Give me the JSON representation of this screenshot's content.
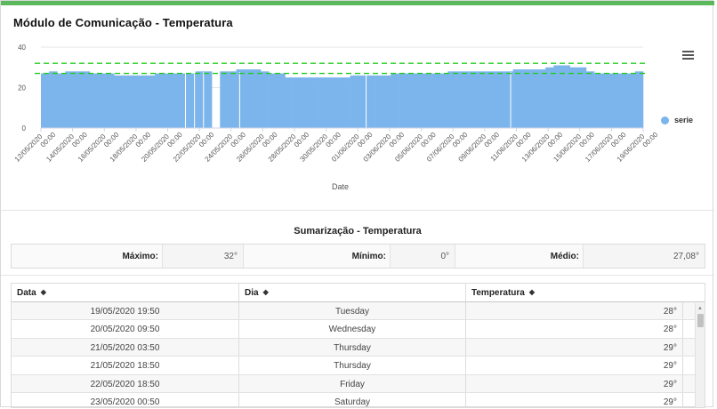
{
  "title": "Módulo de Comunicação - Temperatura",
  "menu_icon": "hamburger-menu-icon",
  "chart_data": {
    "type": "bar",
    "ylim": [
      0,
      40
    ],
    "y_ticks": [
      "0",
      "20",
      "40"
    ],
    "thresholds": [
      27,
      32
    ],
    "threshold_color": "#22cc22",
    "bar_color": "#7cb5ec",
    "xlabel": "Date",
    "x_tick_labels": [
      "12/05/2020 00:00",
      "14/05/2020 00:00",
      "16/05/2020 00:00",
      "18/05/2020 00:00",
      "20/05/2020 00:00",
      "22/05/2020 00:00",
      "24/05/2020 00:00",
      "26/05/2020 00:00",
      "28/05/2020 00:00",
      "30/05/2020 00:00",
      "01/06/2020 00:00",
      "03/06/2020 00:00",
      "05/06/2020 00:00",
      "07/06/2020 00:00",
      "09/06/2020 00:00",
      "11/06/2020 00:00",
      "13/06/2020 00:00",
      "15/06/2020 00:00",
      "17/06/2020 00:00",
      "19/06/2020 00:00"
    ],
    "legend": "serie",
    "series": [
      {
        "name": "serie",
        "values": [
          27,
          28,
          27,
          28,
          28,
          28,
          27,
          27,
          27,
          26,
          26,
          26,
          26,
          26,
          27,
          27,
          27,
          27,
          27,
          28,
          28,
          0,
          28,
          28,
          29,
          29,
          29,
          28,
          27,
          27,
          25,
          25,
          25,
          25,
          25,
          25,
          25,
          25,
          26,
          26,
          26,
          26,
          26,
          27,
          27,
          27,
          27,
          27,
          27,
          27,
          28,
          28,
          28,
          28,
          28,
          28,
          28,
          28,
          29,
          29,
          29,
          29,
          30,
          31,
          31,
          30,
          30,
          28,
          27,
          27,
          27,
          27,
          27,
          28
        ]
      }
    ]
  },
  "summary": {
    "title": "Sumarização - Temperatura",
    "max_label": "Máximo:",
    "max_value": "32°",
    "min_label": "Mínimo:",
    "min_value": "0°",
    "avg_label": "Médio:",
    "avg_value": "27,08°"
  },
  "table": {
    "headers": [
      "Data",
      "Dia",
      "Temperatura"
    ],
    "rows": [
      [
        "19/05/2020 19:50",
        "Tuesday",
        "28°"
      ],
      [
        "20/05/2020 09:50",
        "Wednesday",
        "28°"
      ],
      [
        "21/05/2020 03:50",
        "Thursday",
        "29°"
      ],
      [
        "21/05/2020 18:50",
        "Thursday",
        "29°"
      ],
      [
        "22/05/2020 18:50",
        "Friday",
        "29°"
      ],
      [
        "23/05/2020 00:50",
        "Saturday",
        "29°"
      ]
    ]
  }
}
